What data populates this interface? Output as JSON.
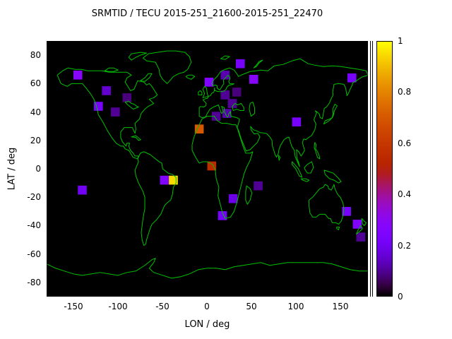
{
  "colors": {
    "page_background": "#ffffff",
    "map_background": "#000000",
    "coastline": "#00c000",
    "text": "#000000"
  },
  "chart_data": {
    "type": "heatmap",
    "title": "SRMTID / TECU 2015-251_21600-2015-251_22470",
    "xlabel": "LON / deg",
    "ylabel": "LAT / deg",
    "xlim": [
      -180,
      180
    ],
    "ylim": [
      -90,
      90
    ],
    "grid": false,
    "x_tick_labels": [
      "-150",
      "-100",
      "-50",
      "0",
      "50",
      "100",
      "150"
    ],
    "x_tick_values": [
      -150,
      -100,
      -50,
      0,
      50,
      100,
      150
    ],
    "y_tick_labels": [
      "80",
      "60",
      "40",
      "20",
      "0",
      "-20",
      "-40",
      "-60",
      "-80"
    ],
    "y_tick_values": [
      80,
      60,
      40,
      20,
      0,
      -20,
      -40,
      -60,
      -80
    ],
    "colorbar": {
      "min": 0,
      "max": 1,
      "tick_labels": [
        "0",
        "0.2",
        "0.4",
        "0.6",
        "0.8",
        "1"
      ],
      "tick_values": [
        0,
        0.2,
        0.4,
        0.6,
        0.8,
        1
      ],
      "position": "right",
      "palette": "gnuplot default rgbformulae 7,5,15 (black-purple-violet-red-orange-yellow)"
    },
    "cell_size_deg": {
      "lon": 10,
      "lat": 6.3
    },
    "cells": [
      {
        "lon": -145,
        "lat": 66,
        "value": 0.28
      },
      {
        "lon": -113,
        "lat": 55,
        "value": 0.15
      },
      {
        "lon": -122,
        "lat": 44,
        "value": 0.22
      },
      {
        "lon": -103,
        "lat": 40,
        "value": 0.1
      },
      {
        "lon": -90,
        "lat": 50,
        "value": 0.08
      },
      {
        "lon": -140,
        "lat": -15,
        "value": 0.2
      },
      {
        "lon": -48,
        "lat": -8,
        "value": 0.25
      },
      {
        "lon": -38,
        "lat": -8,
        "value": 0.95
      },
      {
        "lon": -9,
        "lat": 28,
        "value": 0.7
      },
      {
        "lon": 5,
        "lat": 2,
        "value": 0.55
      },
      {
        "lon": 2,
        "lat": 61,
        "value": 0.25
      },
      {
        "lon": 20,
        "lat": 66,
        "value": 0.12
      },
      {
        "lon": 37,
        "lat": 74,
        "value": 0.22
      },
      {
        "lon": 52,
        "lat": 63,
        "value": 0.28
      },
      {
        "lon": 20,
        "lat": 52,
        "value": 0.1
      },
      {
        "lon": 28,
        "lat": 46,
        "value": 0.1
      },
      {
        "lon": 22,
        "lat": 39,
        "value": 0.12
      },
      {
        "lon": 10,
        "lat": 37,
        "value": 0.1
      },
      {
        "lon": 33,
        "lat": 54,
        "value": 0.08
      },
      {
        "lon": 100,
        "lat": 33,
        "value": 0.22
      },
      {
        "lon": 29,
        "lat": -21,
        "value": 0.18
      },
      {
        "lon": 17,
        "lat": -33,
        "value": 0.22
      },
      {
        "lon": 57,
        "lat": -12,
        "value": 0.1
      },
      {
        "lon": 156,
        "lat": -30,
        "value": 0.22
      },
      {
        "lon": 168,
        "lat": -39,
        "value": 0.25
      },
      {
        "lon": 162,
        "lat": 64,
        "value": 0.22
      },
      {
        "lon": 172,
        "lat": -48,
        "value": 0.1
      }
    ]
  }
}
